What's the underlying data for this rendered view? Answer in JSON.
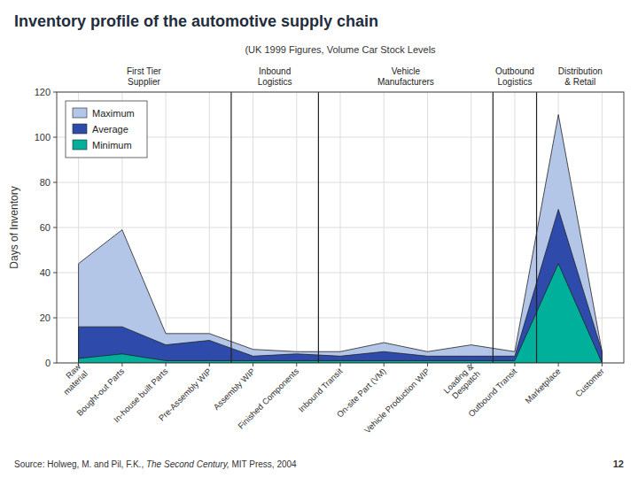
{
  "chart_data": {
    "type": "area",
    "title": "Inventory profile of the automotive supply chain",
    "subtitle": "(UK 1999 Figures, Volume Car Stock Levels",
    "y_label": "Days of Inventory",
    "categories": [
      "Raw\nmaterial",
      "Bought-out Parts",
      "In-house built Parts",
      "Pre-Assembly WIP",
      "Assembly WIP",
      "Finished Components",
      "Inbound Transit",
      "On-site Part (VM)",
      "Vehicle Production WIP",
      "Loading &\nDespatch",
      "Outbound Transit",
      "Marketplace",
      "Customer"
    ],
    "series": [
      {
        "name": "Maximum",
        "color": "#b3c6e7",
        "values": [
          44,
          59,
          13,
          13,
          6,
          5,
          5,
          9,
          5,
          8,
          5,
          110,
          5
        ]
      },
      {
        "name": "Average",
        "color": "#2e4bac",
        "values": [
          16,
          16,
          8,
          10,
          3,
          4,
          3,
          5,
          3,
          3,
          3,
          68,
          5
        ]
      },
      {
        "name": "Minimum",
        "color": "#00b09b",
        "values": [
          2,
          4,
          1,
          1,
          1,
          1,
          1,
          1,
          1,
          1,
          1,
          44,
          0
        ]
      }
    ],
    "annotations": [
      {
        "text": "First Tier\nSupplier",
        "x": [
          "Raw\nmaterial",
          "Pre-Assembly WIP"
        ]
      },
      {
        "text": "Inbound\nLogistics",
        "x": [
          "Assembly WIP",
          "Finished Components"
        ]
      },
      {
        "text": "Vehicle\nManufacturers",
        "x": [
          "Inbound Transit",
          "Loading &\nDespatch"
        ]
      },
      {
        "text": "Outbound\nLogistics",
        "x": [
          "Outbound Transit",
          "Outbound Transit"
        ]
      },
      {
        "text": "Distribution\n& Retail",
        "x": [
          "Marketplace",
          "Customer"
        ]
      }
    ],
    "footer": [
      "Source: Holweg, M. and Pil, F.K., ",
      "The Second Century,",
      " MIT Press, 2004"
    ],
    "page_number": "12",
    "ylim": [
      0,
      120
    ],
    "yticks": [
      0,
      20,
      40,
      60,
      80,
      100,
      120
    ],
    "grid": true,
    "legend": "upper left"
  }
}
